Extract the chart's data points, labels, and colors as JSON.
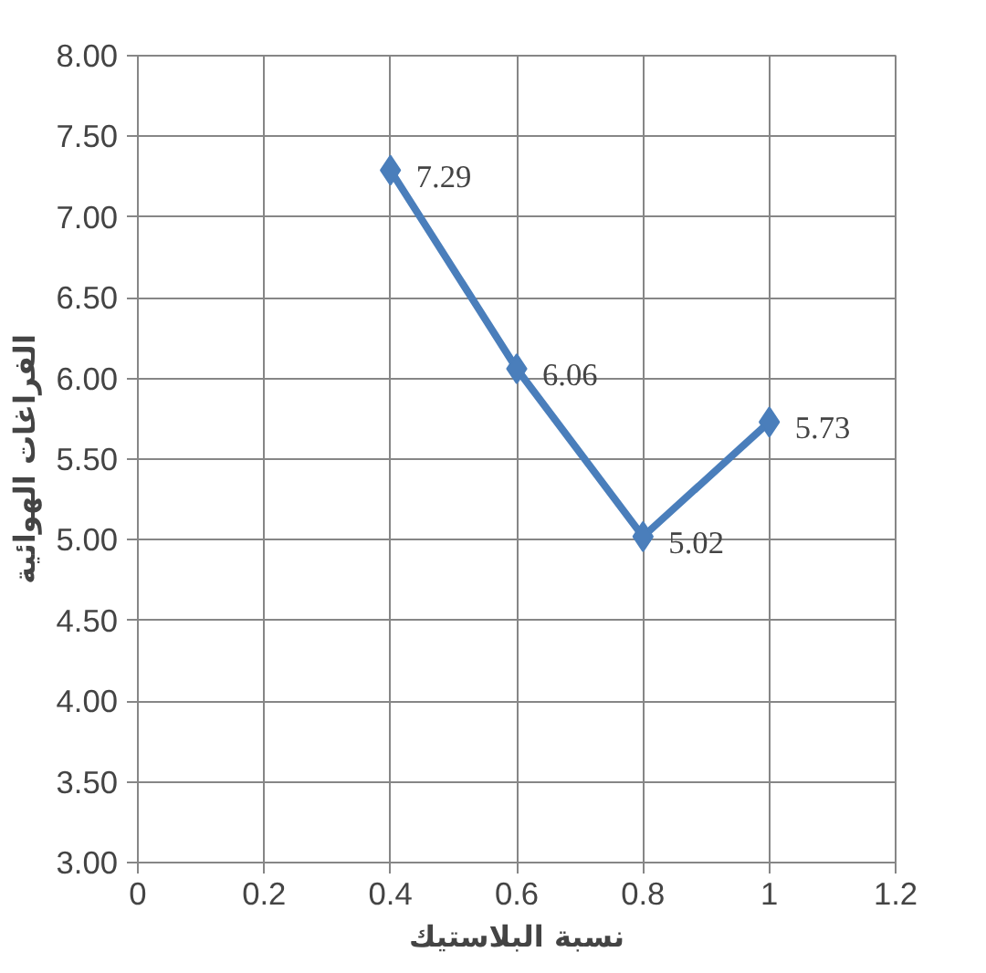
{
  "chart_data": {
    "type": "line",
    "xlabel": "نسبة البلاستيك",
    "ylabel": "الفراغات الهوائية",
    "x": [
      0.4,
      0.6,
      0.8,
      1
    ],
    "series": [
      {
        "color": "#4a7ebb",
        "values": [
          7.29,
          6.06,
          5.02,
          5.73
        ]
      }
    ],
    "data_labels": true,
    "marker": "diamond",
    "line_style": "solid",
    "grid": true,
    "xlim": [
      0,
      1.2
    ],
    "xticks": [
      0,
      0.2,
      0.4,
      0.6,
      0.8,
      1,
      1.2
    ],
    "ylim": [
      3,
      8
    ],
    "yticks": [
      {
        "value": 3,
        "label": "3.00"
      },
      {
        "value": 3.5,
        "label": "3.50"
      },
      {
        "value": 4,
        "label": "4.00"
      },
      {
        "value": 4.5,
        "label": "4.50"
      },
      {
        "value": 5,
        "label": "5.00"
      },
      {
        "value": 5.5,
        "label": "5.50"
      },
      {
        "value": 6,
        "label": "6.00"
      },
      {
        "value": 6.5,
        "label": "6.50"
      },
      {
        "value": 7,
        "label": "7.00"
      },
      {
        "value": 7.5,
        "label": "7.50"
      },
      {
        "value": 8,
        "label": "8.00"
      }
    ]
  }
}
